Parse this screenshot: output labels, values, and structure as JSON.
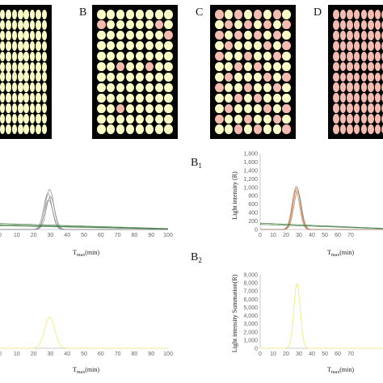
{
  "panels": {
    "A": {
      "letter": "",
      "plate": {
        "cols": 8,
        "rows": 12,
        "hits": []
      }
    },
    "B": {
      "letter": "B",
      "plate": {
        "cols": 8,
        "rows": 12,
        "hits": [
          [
            0,
            1
          ],
          [
            6,
            1
          ],
          [
            7,
            2
          ],
          [
            2,
            5
          ],
          [
            5,
            5
          ],
          [
            2,
            9
          ]
        ]
      }
    },
    "C": {
      "letter": "C",
      "plate": {
        "cols": 8,
        "rows": 12,
        "hits": [
          [
            0,
            0
          ],
          [
            2,
            0
          ],
          [
            4,
            0
          ],
          [
            6,
            0
          ],
          [
            1,
            1
          ],
          [
            3,
            1
          ],
          [
            5,
            1
          ],
          [
            7,
            1
          ],
          [
            0,
            2
          ],
          [
            2,
            2
          ],
          [
            4,
            2
          ],
          [
            6,
            2
          ],
          [
            1,
            3
          ],
          [
            5,
            3
          ],
          [
            7,
            3
          ],
          [
            0,
            4
          ],
          [
            3,
            4
          ],
          [
            6,
            4
          ],
          [
            2,
            5
          ],
          [
            4,
            5
          ],
          [
            1,
            6
          ],
          [
            5,
            6
          ],
          [
            7,
            6
          ],
          [
            0,
            7
          ],
          [
            3,
            7
          ],
          [
            6,
            7
          ],
          [
            2,
            8
          ],
          [
            4,
            8
          ],
          [
            1,
            9
          ],
          [
            5,
            9
          ],
          [
            7,
            9
          ],
          [
            0,
            10
          ],
          [
            3,
            10
          ],
          [
            6,
            10
          ],
          [
            2,
            11
          ],
          [
            4,
            11
          ],
          [
            7,
            11
          ]
        ]
      }
    },
    "D": {
      "letter": "D",
      "plate": {
        "cols": 8,
        "rows": 12,
        "hits": "all"
      }
    }
  },
  "colors": {
    "well_normal": "#fafcc6",
    "well_hit": "#f4bcb0",
    "plate_bg": "#050505",
    "gray_series": "#8a8a8a",
    "green_series": "#3e7a3e",
    "orange_series": "#e07a3a",
    "yellow_series": "#f2ec8a"
  },
  "chart_data": [
    {
      "type": "line",
      "id": "A1",
      "xlabel_main": "T",
      "xlabel_sub": "max",
      "xlabel_unit": "(min)",
      "x_ticks": [
        "0",
        "10",
        "20",
        "30",
        "40",
        "50",
        "60",
        "70",
        "80",
        "90",
        "100"
      ],
      "xlim": [
        0,
        100
      ],
      "ylim": [
        0,
        1800
      ],
      "series": [
        {
          "color": "gray",
          "peak_x": 29.5,
          "peak_y": 950,
          "width": 2.5
        },
        {
          "color": "gray",
          "peak_x": 28.5,
          "peak_y": 850,
          "width": 2.5
        },
        {
          "color": "gray",
          "peak_x": 30,
          "peak_y": 780,
          "width": 2.5
        },
        {
          "color": "gray",
          "peak_x": 29,
          "peak_y": 700,
          "width": 2.5
        },
        {
          "color": "green",
          "baseline_start": 140,
          "baseline_end": 20
        },
        {
          "color": "green",
          "baseline_start": 110,
          "baseline_end": 15
        },
        {
          "color": "green",
          "baseline_start": 90,
          "baseline_end": 10
        }
      ]
    },
    {
      "type": "line",
      "id": "B1",
      "letter": "B",
      "letter_sub": "1",
      "ylabel": "Light intensity (R)",
      "y_ticks": [
        "0",
        "200",
        "400",
        "600",
        "800",
        "1,000",
        "1,200",
        "1,400",
        "1,600",
        "1,800"
      ],
      "x_ticks": [
        "0",
        "10",
        "20",
        "30",
        "40",
        "50",
        "60",
        "70"
      ],
      "xlabel_main": "T",
      "xlabel_sub": "max",
      "xlabel_unit": "(min)",
      "xlim": [
        0,
        100
      ],
      "ylim": [
        0,
        1800
      ],
      "series": [
        {
          "color": "gray",
          "peak_x": 28,
          "peak_y": 1020,
          "width": 3
        },
        {
          "color": "orange",
          "peak_x": 28.5,
          "peak_y": 980,
          "width": 3
        },
        {
          "color": "orange",
          "peak_x": 27.5,
          "peak_y": 930,
          "width": 3
        },
        {
          "color": "gray",
          "peak_x": 29,
          "peak_y": 900,
          "width": 3
        },
        {
          "color": "green",
          "baseline_start": 150,
          "baseline_end": 20
        },
        {
          "color": "green",
          "baseline_start": 120,
          "baseline_end": 15
        }
      ]
    },
    {
      "type": "line",
      "id": "A2",
      "xlabel_main": "T",
      "xlabel_sub": "max",
      "xlabel_unit": "(min)",
      "x_ticks": [
        "0",
        "10",
        "20",
        "30",
        "40",
        "50",
        "60",
        "70",
        "80",
        "90",
        "100"
      ],
      "xlim": [
        0,
        100
      ],
      "ylim": [
        0,
        9000
      ],
      "series": [
        {
          "color": "yellow",
          "peak_x": 29.5,
          "peak_y": 3800,
          "width": 3
        }
      ]
    },
    {
      "type": "line",
      "id": "B2",
      "letter": "B",
      "letter_sub": "2",
      "ylabel": "Light intensity Summation(R)",
      "y_ticks": [
        "0",
        "1,000",
        "2,000",
        "3,000",
        "4,000",
        "5,000",
        "6,000",
        "7,000",
        "8,000",
        "9,000"
      ],
      "x_ticks": [
        "0",
        "10",
        "20",
        "30",
        "40",
        "50",
        "60",
        "70"
      ],
      "xlabel_main": "T",
      "xlabel_sub": "max",
      "xlabel_unit": "(min)",
      "xlim": [
        0,
        100
      ],
      "ylim": [
        0,
        9000
      ],
      "series": [
        {
          "color": "yellow",
          "peak_x": 28.5,
          "peak_y": 7900,
          "width": 2.5
        }
      ]
    }
  ]
}
